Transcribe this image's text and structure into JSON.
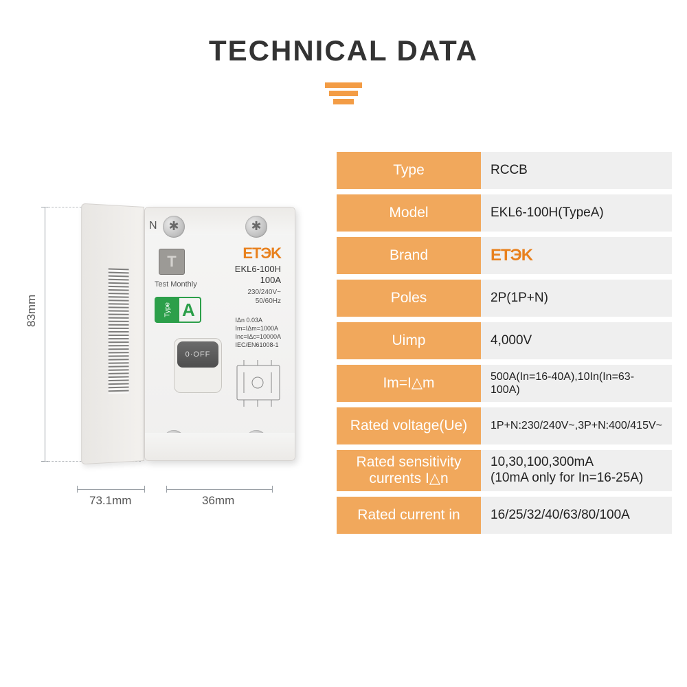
{
  "title": "TECHNICAL DATA",
  "accent_color": "#f1a85c",
  "brand_color": "#e8811e",
  "dimensions": {
    "height": "83mm",
    "depth": "73.1mm",
    "width": "36mm"
  },
  "device": {
    "brand": "ETЭK",
    "model_line1": "EKL6-100H",
    "model_line2": "100A",
    "voltage_line1": "230/240V~",
    "voltage_line2": "50/60Hz",
    "test_button": "T",
    "test_label": "Test Monthly",
    "type_badge_left": "Type",
    "type_badge_right": "A",
    "switch_label": "0·OFF",
    "spec1": "IΔn 0.03A",
    "spec2": "Im=IΔm=1000A",
    "spec3": "Inc=IΔc=10000A",
    "spec4": "IEC/EN61008-1",
    "n_label": "N"
  },
  "table": {
    "key_bg": "#f1a85c",
    "val_bg": "#efefef",
    "key_color": "#ffffff",
    "val_color": "#222222",
    "rows": [
      {
        "key": "Type",
        "val": "RCCB"
      },
      {
        "key": "Model",
        "val": "EKL6-100H(TypeA)"
      },
      {
        "key": "Brand",
        "val": "ETЭK",
        "brand": true
      },
      {
        "key": "Poles",
        "val": "2P(1P+N)"
      },
      {
        "key": "Uimp",
        "val": "4,000V"
      },
      {
        "key": "Im=I△m",
        "val": "500A(In=16-40A),10In(In=63-100A)",
        "small": true
      },
      {
        "key": "Rated voltage(Ue)",
        "val": "1P+N:230/240V~,3P+N:400/415V~",
        "small": true
      },
      {
        "key": "Rated sensitivity currents I△n",
        "val": "10,30,100,300mA\n(10mA only for In=16-25A)"
      },
      {
        "key": "Rated current in",
        "val": "16/25/32/40/63/80/100A"
      }
    ]
  }
}
